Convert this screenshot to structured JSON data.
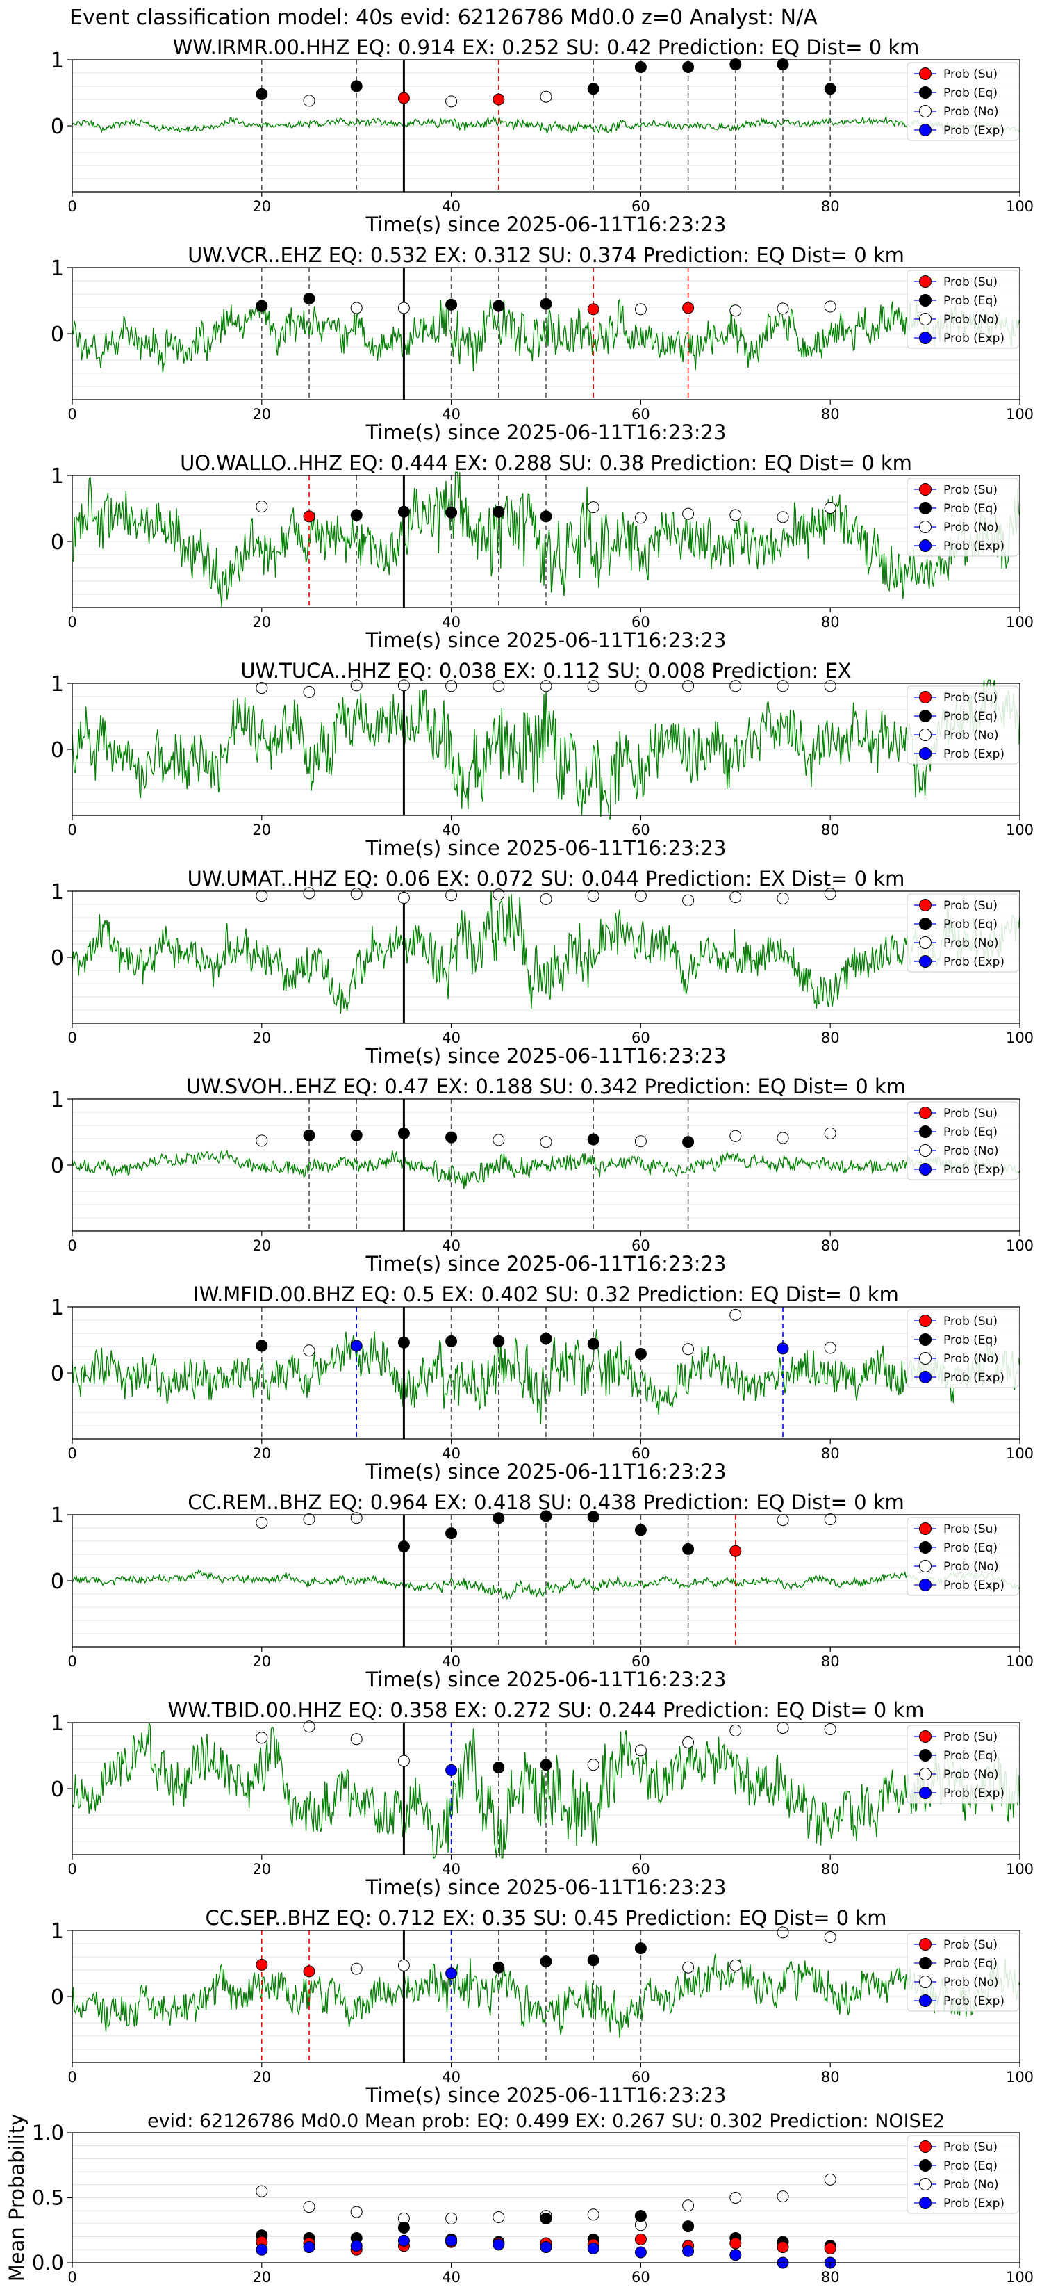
{
  "figure": {
    "title": "Event classification model: 40s evid: 62126786 Md0.0 z=0 Analyst: N/A"
  },
  "legend_labels": [
    "Prob (Su)",
    "Prob (Eq)",
    "Prob (No)",
    "Prob (Exp)"
  ],
  "colors": {
    "trace": "#008000",
    "su": "#ff0000",
    "eq": "#000000",
    "no": "#ffffff",
    "exp": "#0000ff",
    "pick": "#000000",
    "grid": "#d9d9d9"
  },
  "chart_data": [
    {
      "type": "line",
      "station": "WW.IRMR.00.HHZ",
      "title": "WW.IRMR.00.HHZ   EQ: 0.914  EX: 0.252  SU: 0.42   Prediction: EQ    Dist= 0 km",
      "xlabel": "Time(s) since 2025-06-11T16:23:23",
      "xlim": [
        0,
        100
      ],
      "ylim": [
        -1,
        1
      ],
      "xticks": [
        0,
        20,
        40,
        60,
        80,
        100
      ],
      "yticks": [
        1,
        0
      ],
      "pick_time": 35,
      "noise": 0.06,
      "seed": 3,
      "window_times": [
        20,
        25,
        30,
        35,
        40,
        45,
        50,
        55,
        60,
        65,
        70,
        75,
        80
      ],
      "window_probs": [
        0.48,
        0.38,
        0.6,
        0.42,
        0.37,
        0.4,
        0.44,
        0.56,
        0.89,
        0.89,
        0.93,
        0.93,
        0.56
      ],
      "window_class": [
        "eq",
        "no",
        "eq",
        "su",
        "no",
        "su",
        "no",
        "eq",
        "eq",
        "eq",
        "eq",
        "eq",
        "eq"
      ]
    },
    {
      "type": "line",
      "station": "UW.VCR..EHZ",
      "title": "UW.VCR..EHZ   EQ: 0.532  EX: 0.312  SU: 0.374   Prediction: EQ    Dist= 0 km",
      "xlabel": "Time(s) since 2025-06-11T16:23:23",
      "xlim": [
        0,
        100
      ],
      "ylim": [
        -1,
        1
      ],
      "xticks": [
        0,
        20,
        40,
        60,
        80,
        100
      ],
      "yticks": [
        1,
        0
      ],
      "pick_time": 35,
      "noise": 0.3,
      "seed": 7,
      "window_times": [
        20,
        25,
        30,
        35,
        40,
        45,
        50,
        55,
        60,
        65,
        70,
        75,
        80
      ],
      "window_probs": [
        0.42,
        0.53,
        0.39,
        0.39,
        0.44,
        0.42,
        0.45,
        0.37,
        0.37,
        0.39,
        0.35,
        0.38,
        0.41
      ],
      "window_class": [
        "eq",
        "eq",
        "no",
        "no",
        "eq",
        "eq",
        "eq",
        "su",
        "no",
        "su",
        "no",
        "no",
        "no"
      ]
    },
    {
      "type": "line",
      "station": "UO.WALLO..HHZ",
      "title": "UO.WALLO..HHZ   EQ: 0.444  EX: 0.288  SU: 0.38   Prediction: EQ    Dist= 0 km",
      "xlabel": "Time(s) since 2025-06-11T16:23:23",
      "xlim": [
        0,
        100
      ],
      "ylim": [
        -1,
        1
      ],
      "xticks": [
        0,
        20,
        40,
        60,
        80,
        100
      ],
      "yticks": [
        1,
        0
      ],
      "pick_time": 35,
      "noise": 0.45,
      "seed": 11,
      "window_times": [
        20,
        25,
        30,
        35,
        40,
        45,
        50,
        55,
        60,
        65,
        70,
        75,
        80
      ],
      "window_probs": [
        0.53,
        0.38,
        0.4,
        0.45,
        0.44,
        0.45,
        0.38,
        0.52,
        0.36,
        0.42,
        0.4,
        0.37,
        0.51
      ],
      "window_class": [
        "no",
        "su",
        "eq",
        "eq",
        "eq",
        "eq",
        "eq",
        "no",
        "no",
        "no",
        "no",
        "no",
        "no"
      ]
    },
    {
      "type": "line",
      "station": "UW.TUCA..HHZ",
      "title": "UW.TUCA..HHZ   EQ: 0.038  EX: 0.112  SU: 0.008   Prediction: EX",
      "xlabel": "Time(s) since 2025-06-11T16:23:23",
      "xlim": [
        0,
        100
      ],
      "ylim": [
        -1,
        1
      ],
      "xticks": [
        0,
        20,
        40,
        60,
        80,
        100
      ],
      "yticks": [
        1,
        0
      ],
      "pick_time": 35,
      "noise": 0.5,
      "seed": 17,
      "window_times": [
        20,
        25,
        30,
        35,
        40,
        45,
        50,
        55,
        60,
        65,
        70,
        75,
        80
      ],
      "window_probs": [
        0.93,
        0.87,
        0.97,
        0.97,
        0.96,
        0.96,
        0.96,
        0.96,
        0.96,
        0.96,
        0.96,
        0.96,
        0.96
      ],
      "window_class": [
        "no",
        "no",
        "no",
        "no",
        "no",
        "no",
        "no",
        "no",
        "no",
        "no",
        "no",
        "no",
        "no"
      ]
    },
    {
      "type": "line",
      "station": "UW.UMAT..HHZ",
      "title": "UW.UMAT..HHZ   EQ: 0.06  EX: 0.072  SU: 0.044   Prediction: EX    Dist= 0 km",
      "xlabel": "Time(s) since 2025-06-11T16:23:23",
      "xlim": [
        0,
        100
      ],
      "ylim": [
        -1,
        1
      ],
      "xticks": [
        0,
        20,
        40,
        60,
        80,
        100
      ],
      "yticks": [
        1,
        0
      ],
      "pick_time": 35,
      "noise": 0.35,
      "seed": 23,
      "window_times": [
        20,
        25,
        30,
        35,
        40,
        45,
        50,
        55,
        60,
        65,
        70,
        75,
        80
      ],
      "window_probs": [
        0.93,
        0.97,
        0.96,
        0.9,
        0.94,
        0.95,
        0.88,
        0.93,
        0.93,
        0.86,
        0.91,
        0.89,
        0.96
      ],
      "window_class": [
        "no",
        "no",
        "no",
        "no",
        "no",
        "no",
        "no",
        "no",
        "no",
        "no",
        "no",
        "no",
        "no"
      ]
    },
    {
      "type": "line",
      "station": "UW.SVOH..EHZ",
      "title": "UW.SVOH..EHZ   EQ: 0.47  EX: 0.188  SU: 0.342   Prediction: EQ    Dist= 0 km",
      "xlabel": "Time(s) since 2025-06-11T16:23:23",
      "xlim": [
        0,
        100
      ],
      "ylim": [
        -1,
        1
      ],
      "xticks": [
        0,
        20,
        40,
        60,
        80,
        100
      ],
      "yticks": [
        1,
        0
      ],
      "pick_time": 35,
      "noise": 0.12,
      "seed": 29,
      "window_times": [
        20,
        25,
        30,
        35,
        40,
        45,
        50,
        55,
        60,
        65,
        70,
        75,
        80
      ],
      "window_probs": [
        0.37,
        0.45,
        0.45,
        0.48,
        0.42,
        0.38,
        0.35,
        0.39,
        0.36,
        0.35,
        0.44,
        0.41,
        0.48
      ],
      "window_class": [
        "no",
        "eq",
        "eq",
        "eq",
        "eq",
        "no",
        "no",
        "eq",
        "no",
        "eq",
        "no",
        "no",
        "no"
      ]
    },
    {
      "type": "line",
      "station": "IW.MFID.00.BHZ",
      "title": "IW.MFID.00.BHZ   EQ: 0.5  EX: 0.402  SU: 0.32   Prediction: EQ    Dist= 0 km",
      "xlabel": "Time(s) since 2025-06-11T16:23:23",
      "xlim": [
        0,
        100
      ],
      "ylim": [
        -1,
        1
      ],
      "xticks": [
        0,
        20,
        40,
        60,
        80,
        100
      ],
      "yticks": [
        1,
        0
      ],
      "pick_time": 35,
      "noise": 0.35,
      "seed": 31,
      "window_times": [
        20,
        25,
        30,
        35,
        40,
        45,
        50,
        55,
        60,
        65,
        70,
        75,
        80
      ],
      "window_probs": [
        0.41,
        0.34,
        0.41,
        0.46,
        0.48,
        0.48,
        0.52,
        0.44,
        0.29,
        0.36,
        0.88,
        0.37,
        0.38
      ],
      "window_class": [
        "eq",
        "no",
        "exp",
        "eq",
        "eq",
        "eq",
        "eq",
        "eq",
        "eq",
        "no",
        "no",
        "exp",
        "no"
      ]
    },
    {
      "type": "line",
      "station": "CC.REM..BHZ",
      "title": "CC.REM..BHZ   EQ: 0.964  EX: 0.418  SU: 0.438   Prediction: EQ    Dist= 0 km",
      "xlabel": "Time(s) since 2025-06-11T16:23:23",
      "xlim": [
        0,
        100
      ],
      "ylim": [
        -1,
        1
      ],
      "xticks": [
        0,
        20,
        40,
        60,
        80,
        100
      ],
      "yticks": [
        1,
        0
      ],
      "pick_time": 35,
      "noise": 0.07,
      "seed": 37,
      "window_times": [
        20,
        25,
        30,
        35,
        40,
        45,
        50,
        55,
        60,
        65,
        70,
        75,
        80
      ],
      "window_probs": [
        0.88,
        0.93,
        0.95,
        0.52,
        0.72,
        0.95,
        0.98,
        0.97,
        0.77,
        0.48,
        0.45,
        0.92,
        0.93
      ],
      "window_class": [
        "no",
        "no",
        "no",
        "eq",
        "eq",
        "eq",
        "eq",
        "eq",
        "eq",
        "eq",
        "su",
        "no",
        "no"
      ]
    },
    {
      "type": "line",
      "station": "WW.TBID.00.HHZ",
      "title": "WW.TBID.00.HHZ   EQ: 0.358  EX: 0.272  SU: 0.244   Prediction: EQ    Dist= 0 km",
      "xlabel": "Time(s) since 2025-06-11T16:23:23",
      "xlim": [
        0,
        100
      ],
      "ylim": [
        -1,
        1
      ],
      "xticks": [
        0,
        20,
        40,
        60,
        80,
        100
      ],
      "yticks": [
        1,
        0
      ],
      "pick_time": 35,
      "noise": 0.45,
      "seed": 41,
      "window_times": [
        20,
        25,
        30,
        35,
        40,
        45,
        50,
        55,
        60,
        65,
        70,
        75,
        80
      ],
      "window_probs": [
        0.77,
        0.94,
        0.75,
        0.42,
        0.28,
        0.32,
        0.36,
        0.36,
        0.58,
        0.7,
        0.88,
        0.92,
        0.9
      ],
      "window_class": [
        "no",
        "no",
        "no",
        "no",
        "exp",
        "eq",
        "eq",
        "no",
        "no",
        "no",
        "no",
        "no",
        "no"
      ]
    },
    {
      "type": "line",
      "station": "CC.SEP..BHZ",
      "title": "CC.SEP..BHZ   EQ: 0.712  EX: 0.35  SU: 0.45   Prediction: EQ    Dist= 0 km",
      "xlabel": "Time(s) since 2025-06-11T16:23:23",
      "xlim": [
        0,
        100
      ],
      "ylim": [
        -1,
        1
      ],
      "xticks": [
        0,
        20,
        40,
        60,
        80,
        100
      ],
      "yticks": [
        1,
        0
      ],
      "pick_time": 35,
      "noise": 0.3,
      "seed": 43,
      "window_times": [
        20,
        25,
        30,
        35,
        40,
        45,
        50,
        55,
        60,
        65,
        70,
        75,
        80
      ],
      "window_probs": [
        0.48,
        0.38,
        0.42,
        0.47,
        0.35,
        0.44,
        0.53,
        0.55,
        0.73,
        0.44,
        0.47,
        0.97,
        0.9
      ],
      "window_class": [
        "su",
        "su",
        "no",
        "no",
        "exp",
        "eq",
        "eq",
        "eq",
        "eq",
        "no",
        "no",
        "no",
        "no"
      ]
    },
    {
      "type": "scatter",
      "station": "",
      "title": "evid: 62126786  Md0.0    Mean prob:    EQ: 0.499   EX: 0.267   SU: 0.302    Prediction: NOISE2",
      "xlabel": "",
      "ylabel": "Mean Probability",
      "xlim": [
        0,
        100
      ],
      "ylim": [
        0,
        1
      ],
      "xticks": [
        0,
        20,
        40,
        60,
        80,
        100
      ],
      "yticks": [
        "0.0",
        "0.5",
        "1.0"
      ],
      "x": [
        20,
        25,
        30,
        35,
        40,
        45,
        50,
        55,
        60,
        65,
        70,
        75,
        80
      ],
      "series": [
        {
          "class": "no",
          "values": [
            0.55,
            0.43,
            0.39,
            0.34,
            0.34,
            0.35,
            0.36,
            0.37,
            0.29,
            0.44,
            0.5,
            0.51,
            0.64
          ]
        },
        {
          "class": "eq",
          "values": [
            0.21,
            0.19,
            0.19,
            0.27,
            0.18,
            0.16,
            0.34,
            0.18,
            0.36,
            0.28,
            0.19,
            0.16,
            0.13
          ]
        },
        {
          "class": "su",
          "values": [
            0.16,
            0.15,
            0.1,
            0.13,
            0.16,
            0.15,
            0.15,
            0.14,
            0.18,
            0.13,
            0.15,
            0.12,
            0.11
          ]
        },
        {
          "class": "exp",
          "values": [
            0.1,
            0.12,
            0.13,
            0.17,
            0.17,
            0.14,
            0.12,
            0.11,
            0.08,
            0.09,
            0.06,
            0.0,
            0.0
          ]
        }
      ]
    }
  ]
}
